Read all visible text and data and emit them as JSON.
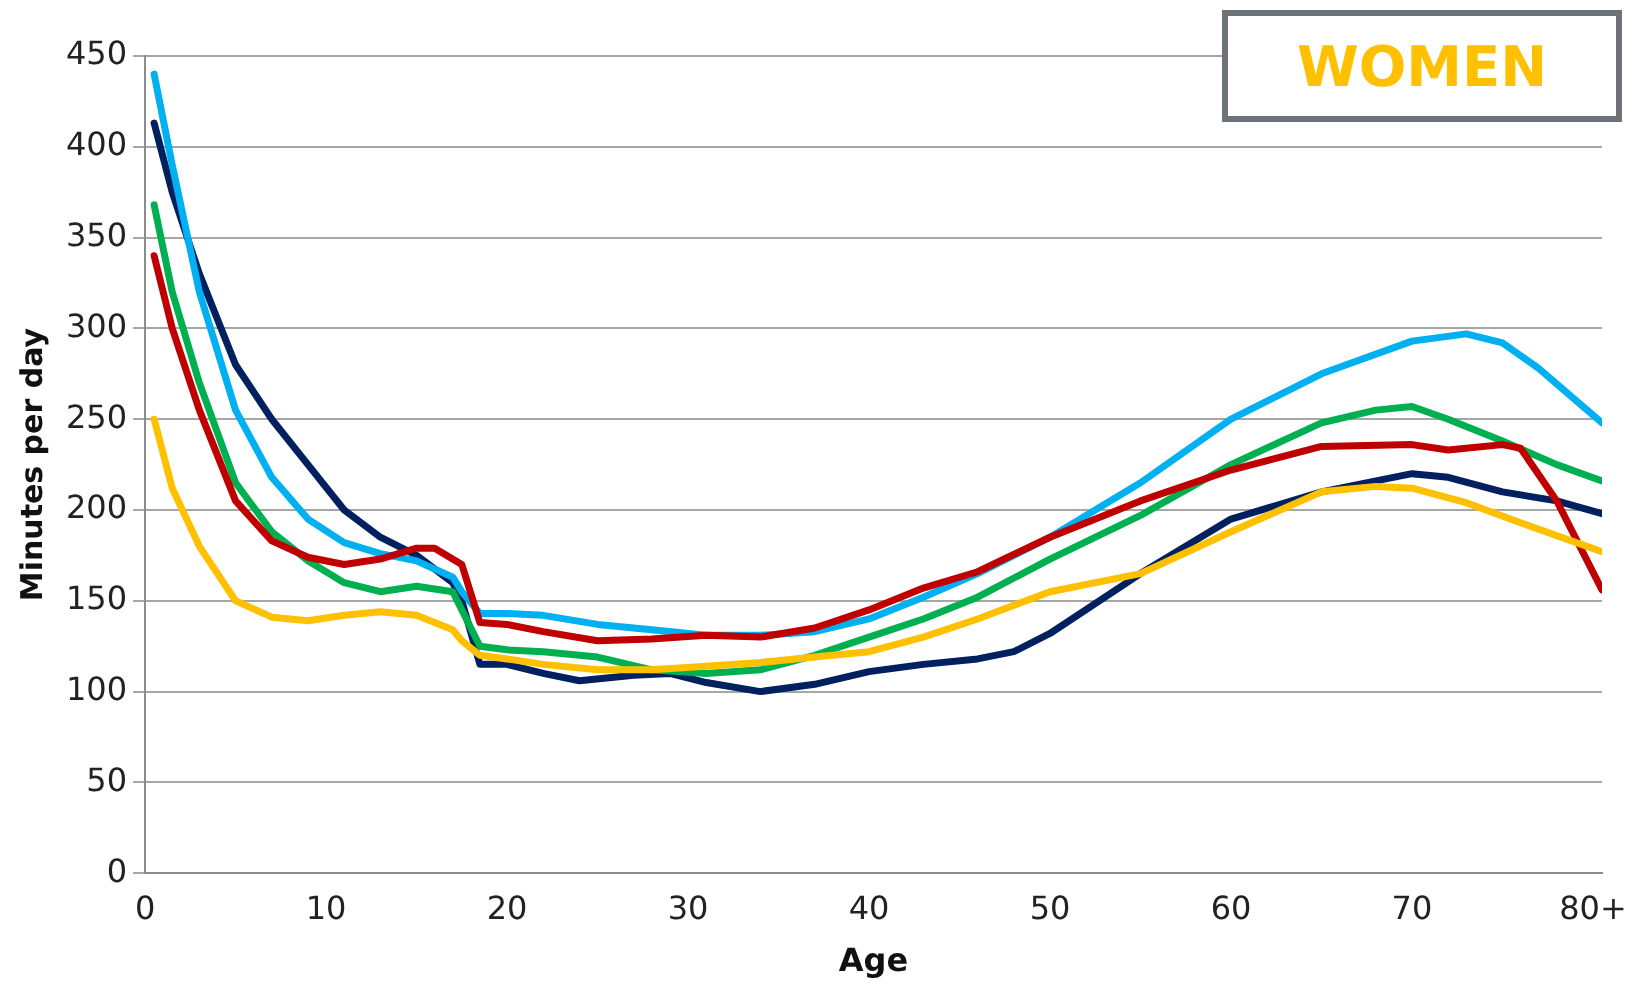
{
  "chart_data": {
    "type": "line",
    "xlabel": "Age",
    "ylabel": "Minutes per day",
    "annotations": [
      "WOMEN"
    ],
    "xlim": [
      0,
      80.5
    ],
    "xticks": [
      0,
      10,
      20,
      30,
      40,
      50,
      60,
      70,
      {
        "value": 80,
        "label": "80+"
      }
    ],
    "ylim": [
      0,
      450
    ],
    "yticks": [
      0,
      50,
      100,
      150,
      200,
      250,
      300,
      350,
      400,
      450
    ],
    "grid": "y",
    "legend": false,
    "marker": "none",
    "line_style": "solid",
    "series": [
      {
        "color": "#ffc000",
        "x": [
          0.5,
          1.5,
          3,
          5,
          7,
          9,
          11,
          13,
          15,
          17,
          17.5,
          18.5,
          20,
          22,
          25,
          28,
          31,
          34,
          37,
          40,
          43,
          46,
          50,
          55,
          60,
          65,
          68,
          70,
          73,
          76,
          80.5
        ],
        "values": [
          250,
          212,
          180,
          150,
          141,
          139,
          142,
          144,
          142,
          134,
          128,
          120,
          118,
          115,
          112,
          112,
          114,
          116,
          119,
          122,
          130,
          140,
          155,
          165,
          188,
          210,
          213,
          212,
          204,
          193,
          177
        ]
      },
      {
        "color": "#c00000",
        "x": [
          0.5,
          1.5,
          3,
          5,
          7,
          9,
          11,
          13,
          15,
          16,
          17.5,
          18.5,
          20,
          22,
          25,
          28,
          31,
          34,
          37,
          40,
          43,
          46,
          50,
          55,
          60,
          65,
          70,
          72,
          75,
          76,
          78,
          80.5
        ],
        "values": [
          340,
          300,
          255,
          205,
          183,
          174,
          170,
          173,
          179,
          179,
          170,
          138,
          137,
          133,
          128,
          129,
          131,
          130,
          135,
          145,
          157,
          166,
          185,
          205,
          222,
          235,
          236,
          233,
          236,
          234,
          205,
          156
        ]
      },
      {
        "color": "#00b050",
        "x": [
          0.5,
          1.5,
          3,
          5,
          7,
          9,
          11,
          13,
          15,
          17,
          17.5,
          18.5,
          20,
          22,
          25,
          28,
          31,
          34,
          37,
          40,
          43,
          46,
          50,
          55,
          60,
          65,
          68,
          70,
          72,
          75,
          78,
          80.5
        ],
        "values": [
          368,
          320,
          270,
          215,
          188,
          172,
          160,
          155,
          158,
          155,
          145,
          125,
          123,
          122,
          119,
          112,
          110,
          112,
          120,
          130,
          140,
          152,
          173,
          197,
          225,
          248,
          255,
          257,
          250,
          238,
          225,
          216
        ]
      },
      {
        "color": "#00b0f0",
        "x": [
          0.5,
          1.5,
          3,
          5,
          7,
          9,
          11,
          13,
          15,
          17,
          17.5,
          18.5,
          20,
          22,
          25,
          28,
          31,
          34,
          37,
          40,
          43,
          46,
          50,
          55,
          60,
          65,
          70,
          73,
          75,
          77,
          80.5
        ],
        "values": [
          440,
          390,
          320,
          255,
          218,
          195,
          182,
          176,
          172,
          163,
          155,
          143,
          143,
          142,
          137,
          134,
          131,
          131,
          133,
          140,
          152,
          165,
          185,
          215,
          250,
          275,
          293,
          297,
          292,
          278,
          248
        ]
      },
      {
        "color": "#002060",
        "x": [
          0.5,
          1.5,
          3,
          5,
          7,
          9,
          11,
          13,
          15,
          17,
          17.5,
          18.5,
          20,
          22,
          24,
          27,
          29,
          31,
          34,
          37,
          40,
          43,
          46,
          48,
          50,
          55,
          60,
          65,
          70,
          72,
          75,
          78,
          80.5
        ],
        "values": [
          413,
          375,
          330,
          280,
          250,
          225,
          200,
          185,
          175,
          160,
          150,
          115,
          115,
          110,
          106,
          109,
          110,
          105,
          100,
          104,
          111,
          115,
          118,
          122,
          132,
          165,
          195,
          210,
          220,
          218,
          210,
          205,
          198
        ]
      }
    ]
  }
}
